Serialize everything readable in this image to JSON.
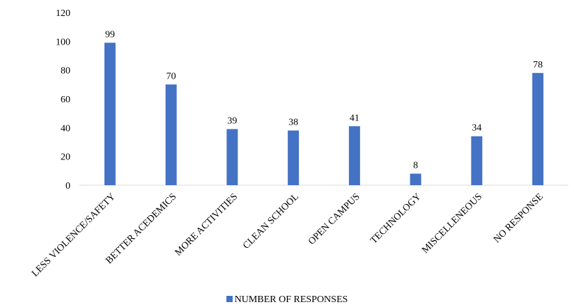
{
  "chart_data": {
    "type": "bar",
    "categories": [
      "LESS VIOLENCE/SAFETY",
      "BETTER ACEDEMICS",
      "MORE ACTIVITIES",
      "CLEAN SCHOOL",
      "OPEN CAMPUS",
      "TECHNOLOGY",
      "MISCELLENEOUS",
      "NO RESPONSE"
    ],
    "series": [
      {
        "name": "NUMBER OF RESPONSES",
        "values": [
          99,
          70,
          39,
          38,
          41,
          8,
          34,
          78
        ],
        "color": "#4472c4"
      }
    ],
    "ylim": [
      0,
      120
    ],
    "yticks": [
      0,
      20,
      40,
      60,
      80,
      100,
      120
    ],
    "grid": false,
    "data_labels": true,
    "legend_position": "bottom"
  }
}
